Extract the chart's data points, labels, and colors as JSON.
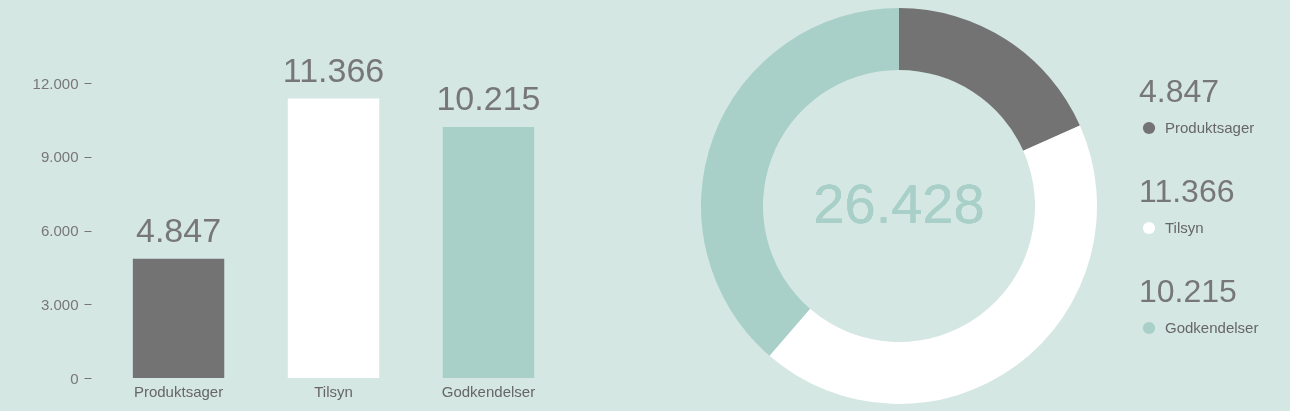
{
  "chart_data": [
    {
      "type": "bar",
      "categories": [
        "Produktsager",
        "Tilsyn",
        "Godkendelser"
      ],
      "values": [
        4847,
        11366,
        10215
      ],
      "colors": [
        "#737373",
        "#ffffff",
        "#a8d0c8"
      ],
      "ylim": [
        0,
        12000
      ],
      "yticks": [
        {
          "value": 0,
          "label": "0"
        },
        {
          "value": 3000,
          "label": "3.000"
        },
        {
          "value": 6000,
          "label": "6.000"
        },
        {
          "value": 9000,
          "label": "9.000"
        },
        {
          "value": 12000,
          "label": "12.000"
        }
      ],
      "value_labels": [
        "4.847",
        "11.366",
        "10.215"
      ],
      "grid": false
    },
    {
      "type": "donut",
      "categories": [
        "Produktsager",
        "Tilsyn",
        "Godkendelser"
      ],
      "values": [
        4847,
        11366,
        10215
      ],
      "colors": [
        "#737373",
        "#ffffff",
        "#a8d0c8"
      ],
      "value_labels": [
        "4.847",
        "11.366",
        "10.215"
      ],
      "legend": "right",
      "annotations": [
        "26.428"
      ]
    }
  ]
}
